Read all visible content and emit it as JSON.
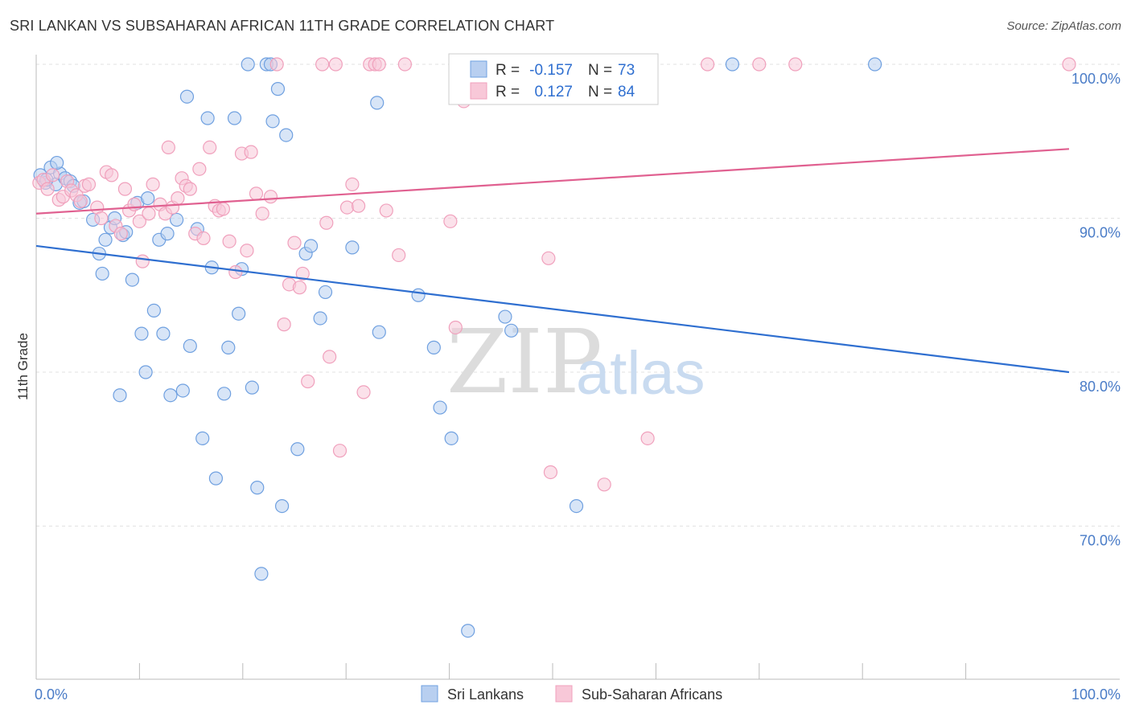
{
  "title": "SRI LANKAN VS SUBSAHARAN AFRICAN 11TH GRADE CORRELATION CHART",
  "source": "Source: ZipAtlas.com",
  "watermark": {
    "zip": "ZIP",
    "atlas": "atlas"
  },
  "chart_data": {
    "type": "scatter",
    "title": "SRI LANKAN VS SUBSAHARAN AFRICAN 11TH GRADE CORRELATION CHART",
    "xlabel": "",
    "ylabel": "11th Grade",
    "xlim": [
      0,
      100
    ],
    "ylim": [
      61.5,
      101.5
    ],
    "x_tick_labels": [
      {
        "value": 0,
        "label": "0.0%"
      },
      {
        "value": 100,
        "label": "100.0%"
      }
    ],
    "x_minor_ticks": [
      10,
      20,
      30,
      40,
      50,
      60,
      70,
      80,
      90
    ],
    "y_ticks": [
      {
        "value": 100,
        "label": "100.0%"
      },
      {
        "value": 90,
        "label": "90.0%"
      },
      {
        "value": 80,
        "label": "80.0%"
      },
      {
        "value": 70,
        "label": "70.0%"
      }
    ],
    "grid": true,
    "legend_placement": "top-center",
    "stats": [
      {
        "r_label": "R =",
        "r_value": "-0.157",
        "n_label": "N =",
        "n_value": "73"
      },
      {
        "r_label": "R =",
        "r_value": "0.127",
        "n_label": "N =",
        "n_value": "84"
      }
    ],
    "series": [
      {
        "name": "Sri Lankans",
        "color": "#6fa0e0",
        "fill": "#b8cff0",
        "line_color": "#2f6fd0",
        "trend": {
          "x": [
            0,
            100
          ],
          "y": [
            88.2,
            80.0
          ]
        },
        "points": [
          [
            0.4,
            92.8
          ],
          [
            0.9,
            92.3
          ],
          [
            1.4,
            93.3
          ],
          [
            1.9,
            92.2
          ],
          [
            2.3,
            92.9
          ],
          [
            2.8,
            92.6
          ],
          [
            3.3,
            92.4
          ],
          [
            3.6,
            92.1
          ],
          [
            4.2,
            91.0
          ],
          [
            4.6,
            91.1
          ],
          [
            5.5,
            89.9
          ],
          [
            6.1,
            87.7
          ],
          [
            6.4,
            86.4
          ],
          [
            6.7,
            88.6
          ],
          [
            7.2,
            89.4
          ],
          [
            7.6,
            90.0
          ],
          [
            8.1,
            78.5
          ],
          [
            8.4,
            88.9
          ],
          [
            8.7,
            89.1
          ],
          [
            9.3,
            86.0
          ],
          [
            9.8,
            91.0
          ],
          [
            10.2,
            82.5
          ],
          [
            10.6,
            80.0
          ],
          [
            10.8,
            91.3
          ],
          [
            11.4,
            84.0
          ],
          [
            11.9,
            88.6
          ],
          [
            12.3,
            82.5
          ],
          [
            12.7,
            89.0
          ],
          [
            13.0,
            78.5
          ],
          [
            13.6,
            89.9
          ],
          [
            14.2,
            78.8
          ],
          [
            14.6,
            97.9
          ],
          [
            14.9,
            81.7
          ],
          [
            15.6,
            89.3
          ],
          [
            16.1,
            75.7
          ],
          [
            16.6,
            96.5
          ],
          [
            17.0,
            86.8
          ],
          [
            17.4,
            73.1
          ],
          [
            18.2,
            78.6
          ],
          [
            18.6,
            81.6
          ],
          [
            19.2,
            96.5
          ],
          [
            19.6,
            83.8
          ],
          [
            19.9,
            86.7
          ],
          [
            20.5,
            100.0
          ],
          [
            20.9,
            79.0
          ],
          [
            21.4,
            72.5
          ],
          [
            21.8,
            66.9
          ],
          [
            22.3,
            100.0
          ],
          [
            22.7,
            100.0
          ],
          [
            22.9,
            96.3
          ],
          [
            23.4,
            98.4
          ],
          [
            23.8,
            71.3
          ],
          [
            24.2,
            95.4
          ],
          [
            25.3,
            75.0
          ],
          [
            26.1,
            87.7
          ],
          [
            26.6,
            88.2
          ],
          [
            27.5,
            83.5
          ],
          [
            28.0,
            85.2
          ],
          [
            30.6,
            88.1
          ],
          [
            33.0,
            97.5
          ],
          [
            33.2,
            82.6
          ],
          [
            37.0,
            85.0
          ],
          [
            38.5,
            81.6
          ],
          [
            39.1,
            77.7
          ],
          [
            40.2,
            75.7
          ],
          [
            41.8,
            63.2
          ],
          [
            45.4,
            83.6
          ],
          [
            46.0,
            82.7
          ],
          [
            52.3,
            71.3
          ],
          [
            67.4,
            100.0
          ],
          [
            81.2,
            100.0
          ],
          [
            2.0,
            93.6
          ],
          [
            1.0,
            92.5
          ]
        ]
      },
      {
        "name": "Sub-Saharan Africans",
        "color": "#f0a0bc",
        "fill": "#f8c8d8",
        "line_color": "#e06090",
        "trend": {
          "x": [
            0,
            100
          ],
          "y": [
            90.3,
            94.5
          ]
        },
        "points": [
          [
            0.3,
            92.3
          ],
          [
            0.7,
            92.5
          ],
          [
            1.1,
            91.9
          ],
          [
            1.6,
            92.8
          ],
          [
            2.2,
            91.2
          ],
          [
            2.6,
            91.4
          ],
          [
            3.0,
            92.4
          ],
          [
            3.4,
            91.8
          ],
          [
            3.9,
            91.5
          ],
          [
            4.3,
            91.1
          ],
          [
            4.7,
            92.1
          ],
          [
            5.1,
            92.2
          ],
          [
            5.9,
            90.7
          ],
          [
            6.3,
            90.0
          ],
          [
            6.8,
            93.0
          ],
          [
            7.3,
            92.8
          ],
          [
            7.7,
            89.5
          ],
          [
            8.2,
            89.0
          ],
          [
            8.6,
            91.9
          ],
          [
            9.0,
            90.5
          ],
          [
            9.5,
            90.9
          ],
          [
            10.0,
            89.8
          ],
          [
            10.3,
            87.2
          ],
          [
            10.9,
            90.3
          ],
          [
            11.3,
            92.2
          ],
          [
            12.0,
            90.9
          ],
          [
            12.5,
            90.3
          ],
          [
            12.8,
            94.6
          ],
          [
            13.2,
            90.7
          ],
          [
            13.7,
            91.3
          ],
          [
            14.1,
            92.6
          ],
          [
            14.5,
            92.1
          ],
          [
            14.9,
            91.9
          ],
          [
            15.4,
            89.0
          ],
          [
            15.8,
            93.2
          ],
          [
            16.2,
            88.7
          ],
          [
            16.8,
            94.6
          ],
          [
            17.3,
            90.8
          ],
          [
            17.7,
            90.5
          ],
          [
            18.1,
            90.6
          ],
          [
            18.7,
            88.5
          ],
          [
            19.3,
            86.5
          ],
          [
            19.9,
            94.2
          ],
          [
            20.4,
            87.9
          ],
          [
            20.8,
            94.3
          ],
          [
            21.3,
            91.6
          ],
          [
            21.9,
            90.3
          ],
          [
            22.7,
            91.4
          ],
          [
            23.3,
            100.0
          ],
          [
            24.0,
            83.1
          ],
          [
            24.5,
            85.7
          ],
          [
            25.0,
            88.4
          ],
          [
            25.5,
            85.5
          ],
          [
            25.8,
            86.4
          ],
          [
            26.3,
            79.4
          ],
          [
            27.7,
            100.0
          ],
          [
            28.1,
            89.7
          ],
          [
            28.4,
            81.0
          ],
          [
            29.0,
            100.0
          ],
          [
            29.4,
            74.9
          ],
          [
            30.1,
            90.7
          ],
          [
            30.6,
            92.2
          ],
          [
            31.2,
            90.8
          ],
          [
            31.7,
            78.7
          ],
          [
            32.3,
            100.0
          ],
          [
            32.8,
            100.0
          ],
          [
            33.2,
            100.0
          ],
          [
            33.9,
            90.5
          ],
          [
            35.1,
            87.6
          ],
          [
            35.7,
            100.0
          ],
          [
            40.1,
            89.8
          ],
          [
            40.6,
            82.9
          ],
          [
            41.0,
            100.0
          ],
          [
            41.4,
            97.6
          ],
          [
            41.9,
            98.8
          ],
          [
            46.1,
            100.0
          ],
          [
            49.6,
            87.4
          ],
          [
            49.8,
            73.5
          ],
          [
            55.0,
            72.7
          ],
          [
            59.2,
            75.7
          ],
          [
            65.0,
            100.0
          ],
          [
            70.0,
            100.0
          ],
          [
            73.5,
            100.0
          ],
          [
            100.0,
            100.0
          ]
        ]
      }
    ]
  }
}
